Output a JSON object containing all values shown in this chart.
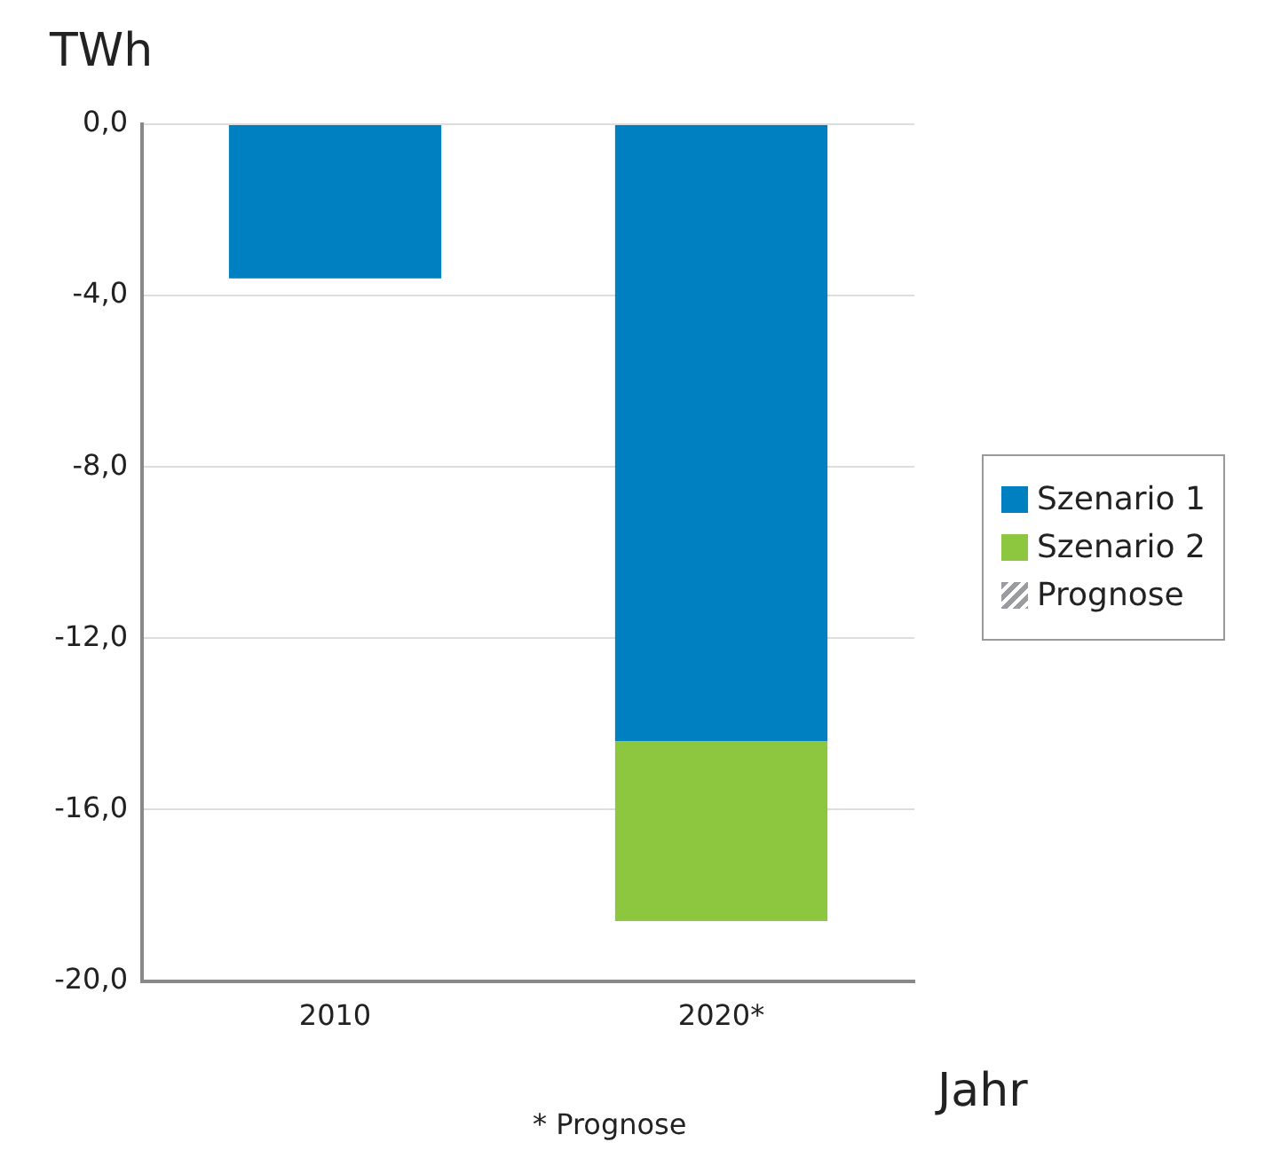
{
  "chart_data": {
    "type": "bar",
    "ylabel": "TWh",
    "xlabel": "Jahr",
    "categories": [
      "2010",
      "2020*"
    ],
    "stacked": true,
    "series": [
      {
        "name": "Szenario 1",
        "color": "#0080c0",
        "values": [
          -3.6,
          -14.4
        ]
      },
      {
        "name": "Szenario 2",
        "color": "#8dc63f",
        "values": [
          null,
          -4.2
        ]
      },
      {
        "name": "Prognose",
        "color": "#9a9ca0",
        "values": [
          null,
          null
        ]
      }
    ],
    "ylim": [
      -20,
      0
    ],
    "yticks": [
      {
        "value": 0,
        "label": "0,0"
      },
      {
        "value": -4,
        "label": "-4,0"
      },
      {
        "value": -8,
        "label": "-8,0"
      },
      {
        "value": -12,
        "label": "-12,0"
      },
      {
        "value": -16,
        "label": "-16,0"
      },
      {
        "value": -20,
        "label": "-20,0"
      }
    ],
    "grid": "y",
    "legend": "right",
    "annotations": [
      "* Prognose"
    ]
  }
}
